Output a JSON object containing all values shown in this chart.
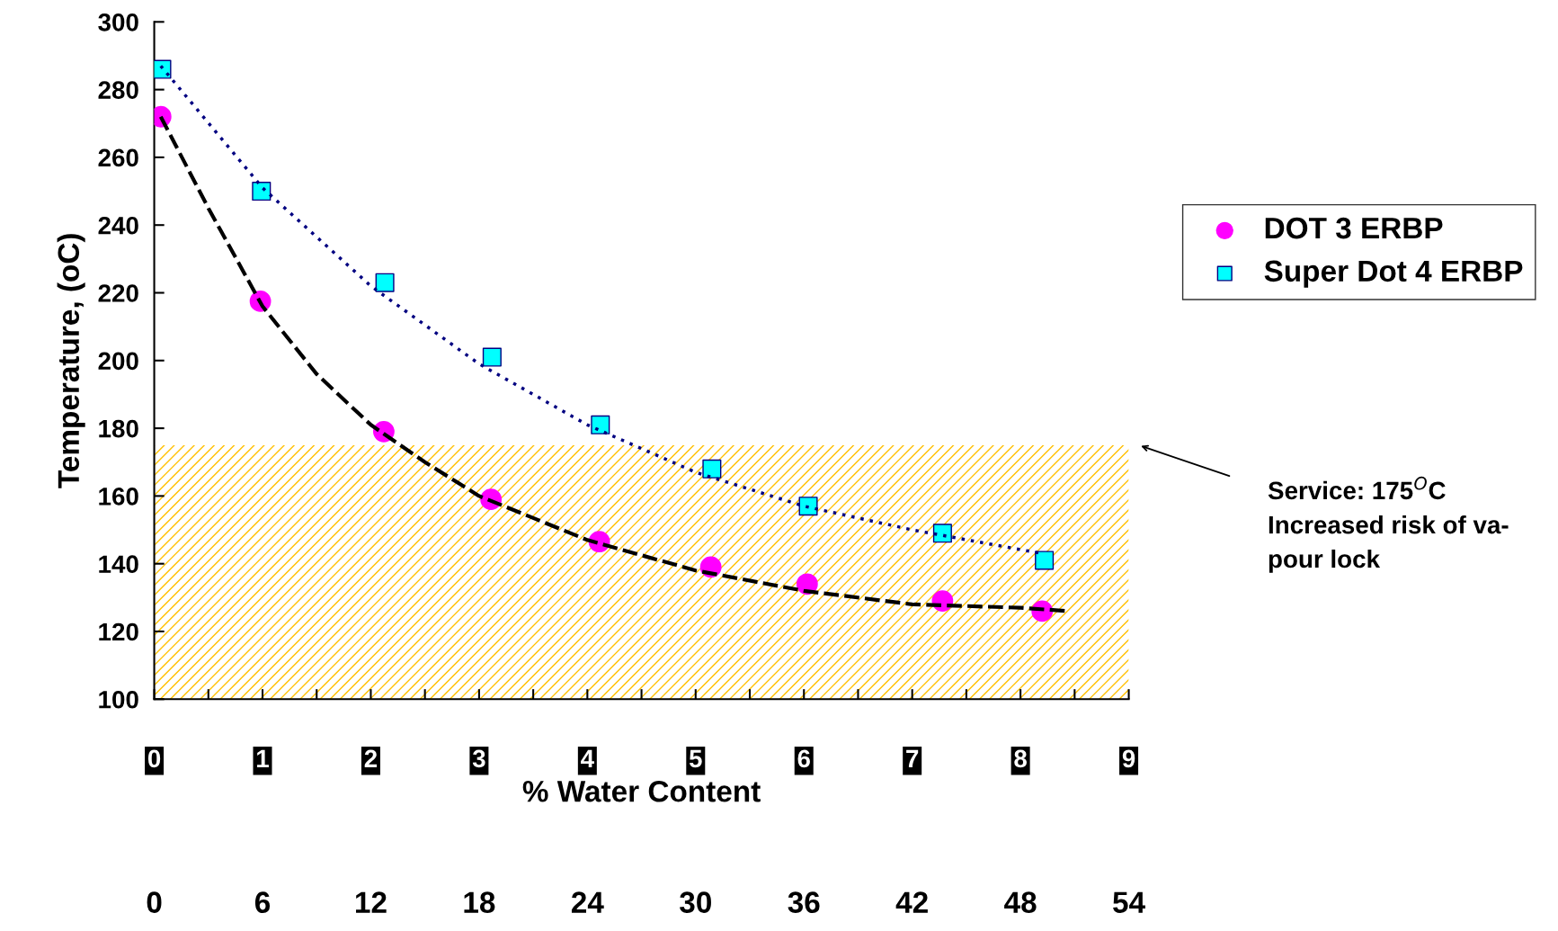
{
  "chart_data": {
    "type": "scatter",
    "xlabel": "% Water Content",
    "ylabel": "Temperature, (oC)",
    "xlim": [
      0,
      9
    ],
    "xticks": [
      0,
      1,
      2,
      3,
      4,
      5,
      6,
      7,
      8,
      9
    ],
    "ylim": [
      100,
      300
    ],
    "yticks": [
      100,
      120,
      140,
      160,
      180,
      200,
      220,
      240,
      260,
      280,
      300
    ],
    "x2lim": [
      0,
      54
    ],
    "x2ticks": [
      0,
      6,
      12,
      18,
      24,
      30,
      36,
      42,
      48,
      54
    ],
    "series": [
      {
        "name": "DOT 3 ERBP",
        "marker": "circle",
        "color": "#ff00ff",
        "x": [
          0.06,
          0.98,
          2.12,
          3.11,
          4.11,
          5.14,
          6.03,
          7.28,
          8.2
        ],
        "values": [
          272,
          217.5,
          179,
          159,
          146.5,
          139,
          134,
          129,
          126
        ]
      },
      {
        "name": "Super Dot 4 ERBP",
        "marker": "square",
        "color": "#00ffff",
        "x": [
          0.07,
          0.99,
          2.13,
          3.12,
          4.12,
          5.15,
          6.04,
          7.28,
          8.22
        ],
        "values": [
          286,
          250,
          223,
          201,
          181,
          168,
          157,
          149,
          141
        ]
      },
      {
        "type": "line",
        "line_style": "dashed",
        "color": "#000000",
        "x": [
          0.06,
          0.5,
          1,
          1.5,
          2,
          2.5,
          3,
          4,
          5,
          6,
          7,
          8,
          8.45
        ],
        "values": [
          272,
          245,
          216,
          196,
          181,
          170,
          160,
          147,
          138,
          132,
          128,
          127,
          126
        ]
      },
      {
        "type": "line",
        "line_style": "dotted",
        "color": "#000080",
        "x": [
          0.06,
          1,
          2,
          3,
          4,
          5,
          6,
          7,
          8.2
        ],
        "values": [
          287,
          251,
          222,
          199,
          181,
          167,
          157,
          150,
          143
        ]
      }
    ],
    "bands": [
      {
        "axis": "y",
        "from": 100,
        "to": 175,
        "color": "#ffc000"
      }
    ],
    "annotations": [
      "Service: 175$^{O}$C\nIncreased risk of va-\npour lock"
    ],
    "legend": "right",
    "grid": false
  }
}
